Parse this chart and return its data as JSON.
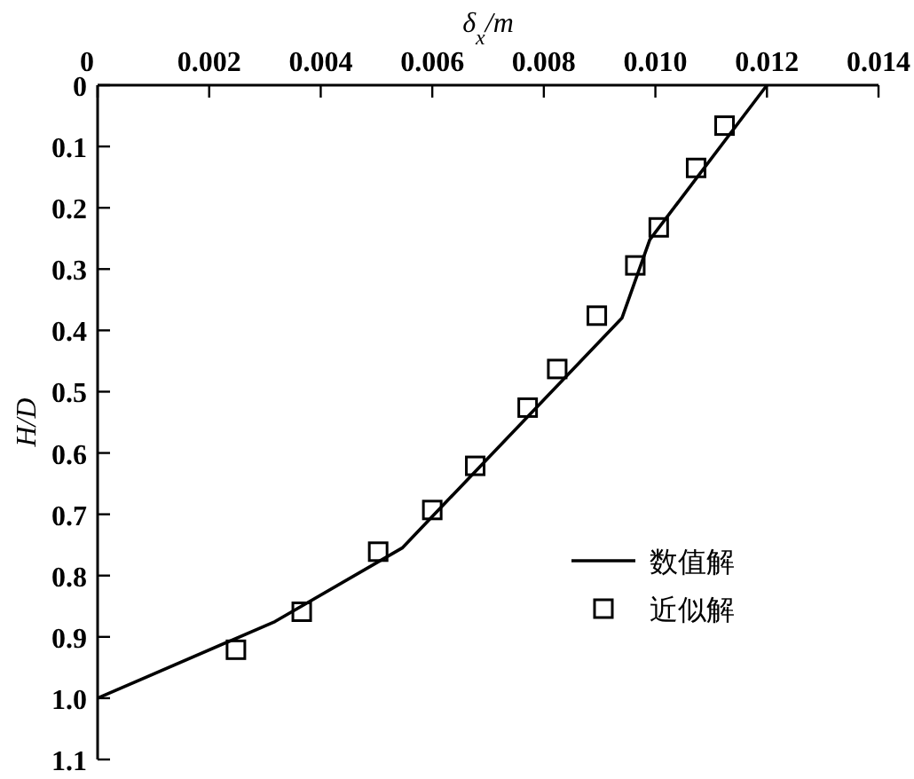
{
  "chart_data": {
    "type": "line",
    "xlabel": "δ$_{x}$/m",
    "ylabel": "H/D",
    "xlim": [
      0,
      0.014
    ],
    "xticks": [
      0,
      0.002,
      0.004,
      0.006,
      0.008,
      {
        "value": 0.01,
        "label": "0.010"
      },
      0.012,
      0.014
    ],
    "ylim": [
      1.1,
      0
    ],
    "yticks": [
      0,
      0.1,
      0.2,
      0.3,
      0.4,
      0.5,
      0.6,
      0.7,
      0.8,
      0.9,
      {
        "value": 1.0,
        "label": "1.0"
      },
      1.1
    ],
    "legend": "right",
    "series": [
      {
        "name": "数值解",
        "color": "#000000",
        "marker": "none",
        "line_style": "solid",
        "x": [
          0.012,
          0.0099,
          0.0094,
          0.00546,
          0.00318,
          0
        ],
        "values": [
          0,
          0.252,
          0.38,
          0.755,
          0.875,
          1.0
        ]
      },
      {
        "name": "近似解",
        "type": "scatter",
        "color": "#000000",
        "marker": "square",
        "x": [
          0.01124,
          0.01073,
          0.01006,
          0.00964,
          0.00895,
          0.00824,
          0.00771,
          0.00677,
          0.006,
          0.00503,
          0.00366,
          0.00248
        ],
        "values": [
          0.066,
          0.135,
          0.232,
          0.294,
          0.376,
          0.463,
          0.526,
          0.621,
          0.693,
          0.761,
          0.859,
          0.921
        ]
      }
    ]
  }
}
